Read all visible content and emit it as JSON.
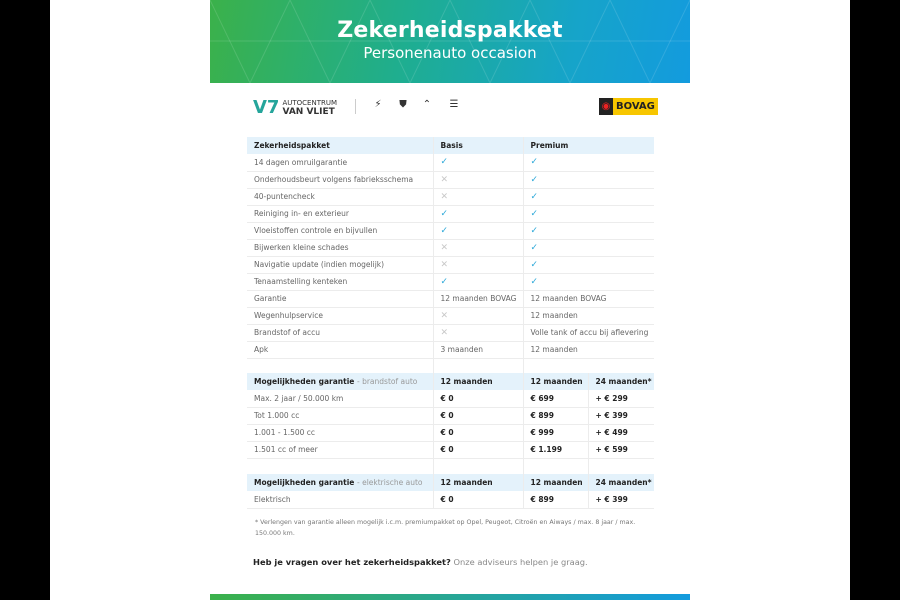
{
  "header": {
    "title": "Zekerheidspakket",
    "subtitle": "Personenauto occasion"
  },
  "logos": {
    "dealer_line1": "AUTOCENTRUM",
    "dealer_line2": "VAN VLIET",
    "brands": [
      "opel-logo",
      "peugeot-logo",
      "citroen-logo",
      "aiways-logo"
    ],
    "bovag": "BOVAG"
  },
  "colors": {
    "check": "#2aa7d8",
    "header_bg": "#e4f2fb",
    "gradient_start": "#3bb14a",
    "gradient_end": "#139bde"
  },
  "packages": {
    "headers": [
      "Zekerheidspakket",
      "Basis",
      "Premium"
    ],
    "rows": [
      [
        "14 dagen omruilgarantie",
        "✓",
        "✓"
      ],
      [
        "Onderhoudsbeurt volgens fabrieksschema",
        "✕",
        "✓"
      ],
      [
        "40-puntencheck",
        "✕",
        "✓"
      ],
      [
        "Reiniging in- en exterieur",
        "✓",
        "✓"
      ],
      [
        "Vloeistoffen controle en bijvullen",
        "✓",
        "✓"
      ],
      [
        "Bijwerken kleine schades",
        "✕",
        "✓"
      ],
      [
        "Navigatie update (indien mogelijk)",
        "✕",
        "✓"
      ],
      [
        "Tenaamstelling kenteken",
        "✓",
        "✓"
      ],
      [
        "Garantie",
        "12 maanden BOVAG",
        "12 maanden BOVAG"
      ],
      [
        "Wegenhulpservice",
        "✕",
        "12 maanden"
      ],
      [
        "Brandstof of accu",
        "✕",
        "Volle tank of accu bij aflevering"
      ],
      [
        "Apk",
        "3 maanden",
        "12 maanden"
      ]
    ]
  },
  "fuel": {
    "title": "Mogelijkheden garantie",
    "sub": "- brandstof auto",
    "headers": [
      "12 maanden",
      "12 maanden",
      "24 maanden*"
    ],
    "rows": [
      [
        "Max. 2 jaar / 50.000 km",
        "€ 0",
        "€ 699",
        "+ € 299"
      ],
      [
        "Tot 1.000 cc",
        "€ 0",
        "€ 899",
        "+ € 399"
      ],
      [
        "1.001 - 1.500 cc",
        "€ 0",
        "€ 999",
        "+ € 499"
      ],
      [
        "1.501 cc of meer",
        "€ 0",
        "€ 1.199",
        "+ € 599"
      ]
    ]
  },
  "electric": {
    "title": "Mogelijkheden garantie",
    "sub": "- elektrische auto",
    "headers": [
      "12 maanden",
      "12 maanden",
      "24 maanden*"
    ],
    "rows": [
      [
        "Elektrisch",
        "€ 0",
        "€ 899",
        "+ € 399"
      ]
    ]
  },
  "footnote": "* Verlengen van garantie alleen mogelijk i.c.m. premiumpakket op Opel, Peugeot, Citroën en Aiways / max. 8 jaar / max. 150.000 km.",
  "question": {
    "bold": "Heb je vragen over het zekerheidspakket?",
    "rest": " Onze adviseurs helpen je graag."
  }
}
